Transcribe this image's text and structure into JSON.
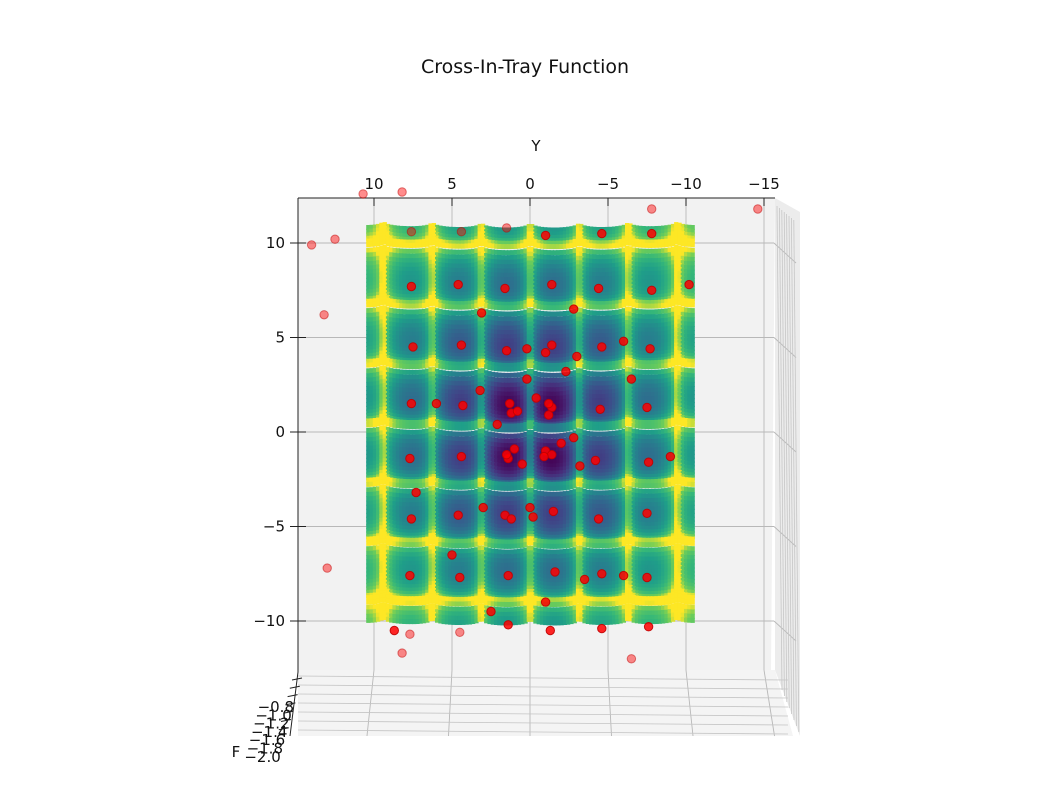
{
  "chart_data": {
    "type": "surface3d",
    "title": "Cross-In-Tray Function",
    "xlabel": "",
    "ylabel": "Y",
    "zlabel": "F",
    "y_ticks": [
      "10",
      "5",
      "0",
      "−5",
      "−10",
      "−15"
    ],
    "x_ticks": [
      "10",
      "5",
      "0",
      "−5",
      "−10"
    ],
    "z_ticks": [
      "−0.8",
      "−1.0",
      "−1.2",
      "−1.4",
      "−1.6",
      "−1.8",
      "−2.0"
    ],
    "ylim": [
      -15,
      12
    ],
    "xlim": [
      -12,
      12
    ],
    "zlim": [
      -2.0,
      -0.8
    ],
    "grid": true,
    "colormap": "viridis",
    "surface": {
      "function": "cross-in-tray",
      "x_range": [
        -10.5,
        10.5
      ],
      "y_range": [
        -10.5,
        10.5
      ]
    },
    "scatter": {
      "name": "",
      "color": "#ff0000",
      "points": [
        [
          8.2,
          12.7
        ],
        [
          -1.0,
          -1.0
        ],
        [
          1.2,
          1.0
        ],
        [
          -1.4,
          1.3
        ],
        [
          1.4,
          -1.4
        ],
        [
          -1.4,
          -1.2
        ],
        [
          1.3,
          1.5
        ],
        [
          -1.2,
          1.5
        ],
        [
          1.5,
          -1.2
        ],
        [
          0.8,
          1.1
        ],
        [
          -0.9,
          -1.3
        ],
        [
          1.0,
          -0.9
        ],
        [
          -1.2,
          0.9
        ],
        [
          1.5,
          4.3
        ],
        [
          -1.4,
          4.6
        ],
        [
          1.6,
          -4.4
        ],
        [
          -1.5,
          -4.2
        ],
        [
          1.2,
          -4.6
        ],
        [
          -1.0,
          4.2
        ],
        [
          4.3,
          1.4
        ],
        [
          -4.5,
          1.2
        ],
        [
          4.4,
          -1.3
        ],
        [
          -4.2,
          -1.5
        ],
        [
          4.4,
          4.6
        ],
        [
          -4.6,
          4.5
        ],
        [
          4.6,
          -4.4
        ],
        [
          -4.4,
          -4.6
        ],
        [
          1.6,
          7.6
        ],
        [
          -1.4,
          7.8
        ],
        [
          1.4,
          -7.6
        ],
        [
          -1.6,
          -7.4
        ],
        [
          7.6,
          1.5
        ],
        [
          -7.5,
          1.3
        ],
        [
          7.7,
          -1.4
        ],
        [
          -7.6,
          -1.6
        ],
        [
          4.6,
          7.8
        ],
        [
          -4.4,
          7.6
        ],
        [
          4.5,
          -7.7
        ],
        [
          -4.6,
          -7.5
        ],
        [
          7.5,
          4.5
        ],
        [
          -7.7,
          4.4
        ],
        [
          7.6,
          -4.6
        ],
        [
          -7.5,
          -4.3
        ],
        [
          7.6,
          7.7
        ],
        [
          -7.8,
          7.5
        ],
        [
          7.7,
          -7.6
        ],
        [
          -7.5,
          -7.7
        ],
        [
          1.5,
          10.8
        ],
        [
          -1.0,
          10.4
        ],
        [
          1.4,
          -10.2
        ],
        [
          -1.3,
          -10.5
        ],
        [
          4.4,
          10.6
        ],
        [
          -4.6,
          10.5
        ],
        [
          4.5,
          -10.6
        ],
        [
          -4.6,
          -10.4
        ],
        [
          7.6,
          10.6
        ],
        [
          -7.8,
          10.5
        ],
        [
          7.7,
          -10.7
        ],
        [
          -7.6,
          -10.3
        ],
        [
          0.2,
          2.8
        ],
        [
          -2.8,
          -0.3
        ],
        [
          3.2,
          2.2
        ],
        [
          -2.3,
          3.2
        ],
        [
          0.5,
          -1.7
        ],
        [
          -0.4,
          1.8
        ],
        [
          2.1,
          0.4
        ],
        [
          -2.0,
          -0.6
        ],
        [
          10.7,
          12.6
        ],
        [
          -7.8,
          11.8
        ],
        [
          14.0,
          9.9
        ],
        [
          12.5,
          10.2
        ],
        [
          -14.6,
          11.8
        ],
        [
          13.2,
          6.2
        ],
        [
          -6.0,
          4.8
        ],
        [
          -6.5,
          2.8
        ],
        [
          -10.2,
          7.8
        ],
        [
          13.0,
          -7.2
        ],
        [
          -6.5,
          -12.0
        ],
        [
          8.7,
          -10.5
        ],
        [
          6.0,
          1.5
        ],
        [
          -3.2,
          -1.8
        ],
        [
          8.2,
          -11.7
        ],
        [
          2.5,
          -9.5
        ],
        [
          -1.0,
          -9.0
        ],
        [
          -3.5,
          -7.8
        ],
        [
          5.0,
          -6.5
        ],
        [
          -6.0,
          -7.6
        ],
        [
          -9.0,
          -1.3
        ],
        [
          -2.8,
          6.5
        ],
        [
          3.1,
          6.3
        ],
        [
          7.3,
          -3.2
        ],
        [
          0.0,
          -4.0
        ],
        [
          -3.0,
          4.0
        ],
        [
          3.0,
          -4.0
        ],
        [
          0.2,
          4.4
        ],
        [
          -0.2,
          -4.5
        ]
      ]
    }
  }
}
